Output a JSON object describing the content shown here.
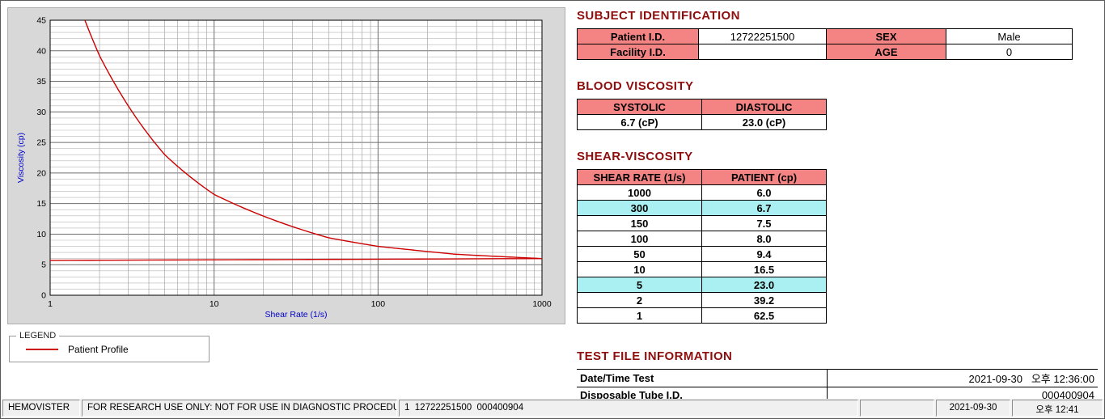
{
  "colors": {
    "accent": "#8e0e0e",
    "header-pink": "#f48484",
    "highlight-cyan": "#aaf0f2",
    "curve-red": "#cc0000",
    "axis-blue": "#0000c8"
  },
  "chart_data": {
    "type": "line",
    "title": "",
    "xlabel": "Shear Rate (1/s)",
    "ylabel": "Viscosity (cp)",
    "x_scale": "log",
    "xlim": [
      1,
      1000
    ],
    "ylim": [
      0,
      45
    ],
    "y_ticks": [
      0,
      5,
      10,
      15,
      20,
      25,
      30,
      35,
      40,
      45
    ],
    "x_ticks": [
      1,
      10,
      100,
      1000
    ],
    "grid": "major-and-minor",
    "legend_position": "groupbox-below-left",
    "series": [
      {
        "name": "Patient Profile",
        "color": "#cc0000",
        "x": [
          1,
          2,
          5,
          10,
          50,
          100,
          150,
          300,
          1000
        ],
        "y": [
          62.5,
          39.2,
          23.0,
          16.5,
          9.4,
          8.0,
          7.5,
          6.7,
          6.0
        ]
      },
      {
        "name": "Baseline",
        "color": "#cc0000",
        "x": [
          1,
          1000
        ],
        "y": [
          5.7,
          6.0
        ]
      }
    ]
  },
  "legend": {
    "title": "LEGEND",
    "items": [
      {
        "label": "Patient Profile",
        "color": "#cc0000"
      }
    ]
  },
  "subject": {
    "heading": "SUBJECT IDENTIFICATION",
    "patient_id_label": "Patient I.D.",
    "patient_id": "12722251500",
    "sex_label": "SEX",
    "sex": "Male",
    "facility_id_label": "Facility I.D.",
    "facility_id": "",
    "age_label": "AGE",
    "age": "0"
  },
  "blood_viscosity": {
    "heading": "BLOOD VISCOSITY",
    "systolic_label": "SYSTOLIC",
    "diastolic_label": "DIASTOLIC",
    "systolic_value": "6.7 (cP)",
    "diastolic_value": "23.0 (cP)"
  },
  "shear_viscosity": {
    "heading": "SHEAR-VISCOSITY",
    "col_rate": "SHEAR RATE (1/s)",
    "col_patient": "PATIENT (cp)",
    "rows": [
      {
        "rate": "1000",
        "value": "6.0",
        "highlight": false
      },
      {
        "rate": "300",
        "value": "6.7",
        "highlight": true
      },
      {
        "rate": "150",
        "value": "7.5",
        "highlight": false
      },
      {
        "rate": "100",
        "value": "8.0",
        "highlight": false
      },
      {
        "rate": "50",
        "value": "9.4",
        "highlight": false
      },
      {
        "rate": "10",
        "value": "16.5",
        "highlight": false
      },
      {
        "rate": "5",
        "value": "23.0",
        "highlight": true
      },
      {
        "rate": "2",
        "value": "39.2",
        "highlight": false
      },
      {
        "rate": "1",
        "value": "62.5",
        "highlight": false
      }
    ]
  },
  "test_file": {
    "heading": "TEST FILE INFORMATION",
    "rows": [
      {
        "label": "Date/Time Test",
        "value": "2021-09-30   오후 12:36:00"
      },
      {
        "label": "Disposable Tube I.D.",
        "value": "000400904"
      }
    ]
  },
  "status_bar": {
    "app_name": "HEMOVISTER",
    "message": "FOR RESEARCH USE ONLY: NOT FOR USE IN DIAGNOSTIC PROCEDURES",
    "test_info": "1  12722251500  000400904",
    "date": "2021-09-30",
    "time": "오후 12:41"
  }
}
